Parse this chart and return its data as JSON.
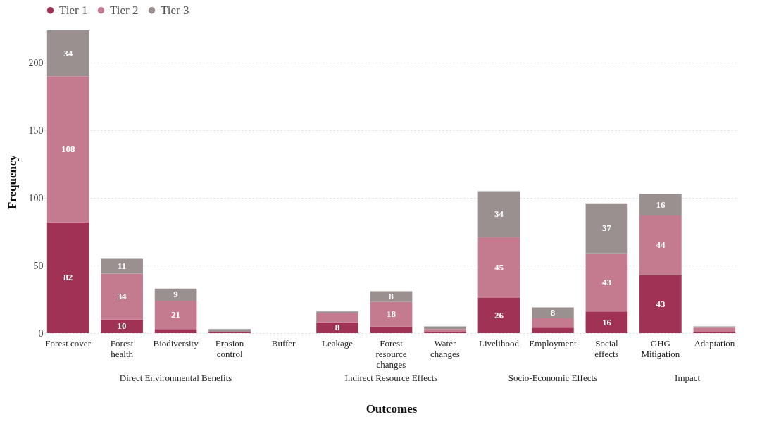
{
  "chart_data": {
    "type": "bar",
    "stacked": true,
    "xlabel": "Outcomes",
    "ylabel": "Frequency",
    "categories": [
      "Forest cover",
      "Forest health",
      "Biodiversity",
      "Erosion control",
      "Buffer",
      "Leakage",
      "Forest resource changes",
      "Water changes",
      "Livelihood",
      "Employment",
      "Social effects",
      "GHG Mitigation",
      "Adaptation"
    ],
    "series": [
      {
        "name": "Tier 1",
        "color": "#a03256",
        "values": [
          82,
          10,
          3,
          1,
          0,
          8,
          5,
          1,
          26,
          4,
          16,
          43,
          1
        ],
        "value_labels": [
          "82",
          "10",
          null,
          null,
          null,
          "8",
          null,
          null,
          "26",
          null,
          "16",
          "43",
          null
        ]
      },
      {
        "name": "Tier 2",
        "color": "#c47b90",
        "values": [
          108,
          34,
          21,
          0,
          0,
          7,
          18,
          2,
          45,
          7,
          43,
          44,
          3
        ],
        "value_labels": [
          "108",
          "34",
          "21",
          null,
          null,
          null,
          "18",
          null,
          "45",
          null,
          "43",
          "44",
          null
        ]
      },
      {
        "name": "Tier 3",
        "color": "#9a9090",
        "values": [
          34,
          11,
          9,
          2,
          0,
          1,
          8,
          2,
          34,
          8,
          37,
          16,
          1
        ],
        "value_labels": [
          "34",
          "11",
          "9",
          null,
          null,
          null,
          "8",
          null,
          "34",
          "8",
          "37",
          "16",
          null
        ]
      }
    ],
    "annotations": [
      "Direct Environmental Benefits",
      "Indirect Resource Effects",
      "Socio-Economic Effects",
      "Impact"
    ],
    "ylim": [
      0,
      224
    ],
    "yticks": [
      0,
      50,
      100,
      150,
      200
    ],
    "grid": "y",
    "legend": "top"
  }
}
